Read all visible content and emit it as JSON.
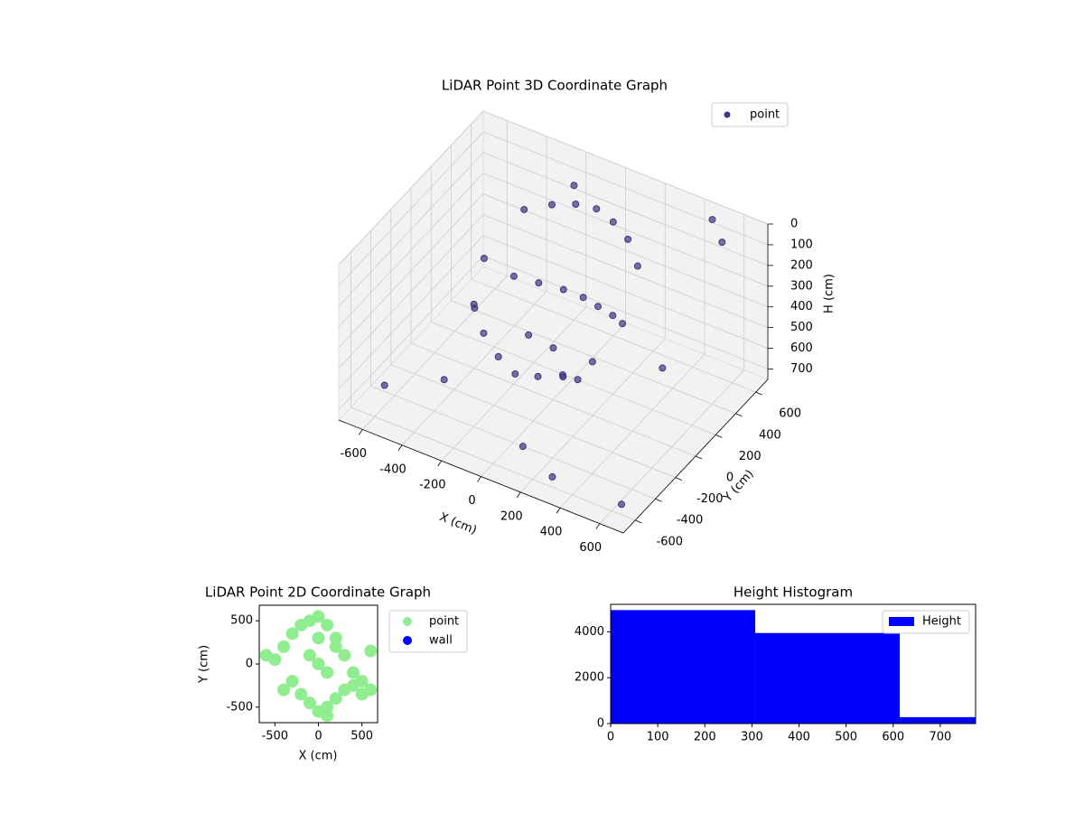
{
  "chart_data": [
    {
      "type": "scatter3d",
      "title": "LiDAR Point 3D Coordinate Graph",
      "xlabel": "X (cm)",
      "ylabel": "Y (cm)",
      "zlabel": "H (cm)",
      "xlim": [
        -720,
        720
      ],
      "ylim": [
        -720,
        720
      ],
      "zlim": [
        0,
        750
      ],
      "z_inverted": true,
      "xticks": [
        -600,
        -400,
        -200,
        0,
        200,
        400,
        600
      ],
      "yticks": [
        -600,
        -400,
        -200,
        0,
        200,
        400,
        600
      ],
      "zticks": [
        0,
        100,
        200,
        300,
        400,
        500,
        600,
        700
      ],
      "grid": true,
      "legend": "upper right",
      "series": [
        {
          "name": "point",
          "color": "#46337e",
          "x": [
            -300,
            -200,
            -100,
            0,
            100,
            200,
            300,
            350,
            300,
            200,
            100,
            0,
            -100,
            -200,
            -300,
            -350,
            -250,
            -150,
            -50,
            50,
            150,
            250,
            0,
            100,
            -100,
            200,
            500,
            600,
            650,
            -600,
            -500,
            300,
            -400,
            400,
            100,
            -200
          ],
          "y": [
            300,
            380,
            420,
            430,
            400,
            350,
            250,
            0,
            -200,
            -300,
            -350,
            -380,
            -350,
            -300,
            -200,
            0,
            100,
            150,
            200,
            200,
            150,
            100,
            0,
            -100,
            -50,
            -150,
            600,
            500,
            -600,
            -500,
            200,
            -600,
            -300,
            300,
            -500,
            600
          ],
          "h": [
            100,
            80,
            60,
            50,
            60,
            80,
            120,
            250,
            350,
            400,
            420,
            430,
            400,
            350,
            300,
            200,
            300,
            320,
            340,
            340,
            320,
            300,
            500,
            550,
            450,
            500,
            0,
            20,
            700,
            650,
            600,
            700,
            650,
            600,
            680,
            100
          ]
        }
      ]
    },
    {
      "type": "scatter",
      "title": "LiDAR Point 2D Coordinate Graph",
      "xlabel": "X (cm)",
      "ylabel": "Y (cm)",
      "xlim": [
        -680,
        680
      ],
      "ylim": [
        -680,
        680
      ],
      "xticks": [
        -500,
        0,
        500
      ],
      "yticks": [
        -500,
        0,
        500
      ],
      "legend": "outside right",
      "series": [
        {
          "name": "point",
          "color": "#90ee90",
          "x": [
            -500,
            -400,
            -300,
            -200,
            -100,
            0,
            100,
            200,
            300,
            400,
            500,
            600,
            -300,
            -200,
            -100,
            0,
            100,
            200,
            300,
            400,
            500,
            -100,
            0,
            100,
            200,
            0,
            100,
            -400,
            -600,
            600
          ],
          "y": [
            50,
            200,
            350,
            450,
            500,
            550,
            450,
            300,
            100,
            -100,
            -200,
            -300,
            -200,
            -350,
            -450,
            -550,
            -500,
            -400,
            -300,
            -250,
            -350,
            100,
            0,
            -100,
            200,
            300,
            -600,
            -300,
            100,
            150
          ]
        },
        {
          "name": "wall",
          "color": "#0000ff",
          "x": [],
          "y": []
        }
      ]
    },
    {
      "type": "histogram",
      "title": "Height Histogram",
      "bins": [
        0,
        307,
        614,
        921
      ],
      "values": [
        4950,
        3950,
        280
      ],
      "series_name": "Height",
      "color": "#0000ff",
      "xlim": [
        0,
        775
      ],
      "ylim": [
        0,
        5200
      ],
      "xticks": [
        0,
        100,
        200,
        300,
        400,
        500,
        600,
        700
      ],
      "yticks": [
        0,
        2000,
        4000
      ],
      "legend": "upper right"
    }
  ]
}
